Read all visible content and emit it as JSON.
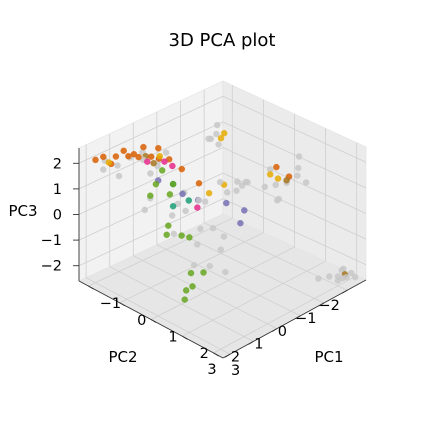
{
  "chart_data": {
    "type": "scatter",
    "dimensions": 3,
    "title": "3D PCA plot",
    "xlabel": "PC1",
    "ylabel": "PC2",
    "zlabel": "PC3",
    "xlim": [
      -1.3,
      3.3
    ],
    "ylim": [
      -2.8,
      3.3
    ],
    "zlim": [
      -2.6,
      2.6
    ],
    "xticks": [
      "-1",
      "0",
      "1",
      "2",
      "3"
    ],
    "yticks": [
      "-2",
      "-1",
      "0",
      "1",
      "2",
      "3"
    ],
    "zticks": [
      "2",
      "1",
      "0",
      "-1",
      "-2"
    ],
    "grid": true,
    "series": [
      {
        "color": "#c8c8c8",
        "points": [
          [
            2.8,
            -2.5,
            -2.3
          ],
          [
            3.0,
            -2.2,
            -2.4
          ],
          [
            2.9,
            -2.3,
            -2.2
          ],
          [
            3.1,
            -2.6,
            -2.5
          ],
          [
            2.7,
            -2.4,
            -2.6
          ],
          [
            3.0,
            -2.0,
            -2.4
          ],
          [
            2.8,
            -1.9,
            -2.3
          ],
          [
            2.6,
            -1.7,
            -2.4
          ],
          [
            3.2,
            -2.1,
            -2.2
          ],
          [
            2.9,
            -2.7,
            -2.5
          ],
          [
            1.2,
            -2.2,
            0.3
          ],
          [
            1.4,
            -2.4,
            0.6
          ],
          [
            1.0,
            -2.0,
            0.2
          ],
          [
            1.6,
            -2.5,
            0.4
          ],
          [
            0.9,
            -1.9,
            0.8
          ],
          [
            1.3,
            -2.6,
            1.2
          ],
          [
            1.1,
            -2.0,
            -0.3
          ],
          [
            0.8,
            -1.8,
            0.1
          ],
          [
            1.5,
            -2.3,
            1.0
          ],
          [
            1.2,
            -1.8,
            -0.2
          ],
          [
            0.5,
            -1.4,
            0.3
          ],
          [
            0.7,
            -1.2,
            0.5
          ],
          [
            0.3,
            -1.5,
            0.0
          ],
          [
            0.6,
            -0.9,
            0.6
          ],
          [
            0.2,
            -1.0,
            -0.1
          ],
          [
            -0.3,
            -1.2,
            1.8
          ],
          [
            -0.5,
            -1.5,
            1.9
          ],
          [
            -0.4,
            -1.1,
            1.6
          ],
          [
            -0.1,
            -0.6,
            2.0
          ],
          [
            0.0,
            -0.9,
            1.7
          ],
          [
            -0.6,
            1.5,
            1.8
          ],
          [
            -0.7,
            1.4,
            2.0
          ],
          [
            -0.8,
            1.8,
            1.9
          ],
          [
            -0.9,
            2.2,
            1.7
          ],
          [
            -0.5,
            1.0,
            1.6
          ],
          [
            -0.4,
            0.8,
            1.9
          ],
          [
            -0.3,
            1.6,
            1.5
          ],
          [
            -0.6,
            0.9,
            1.3
          ],
          [
            0.1,
            0.7,
            0.6
          ],
          [
            0.2,
            1.1,
            0.4
          ],
          [
            0.4,
            0.2,
            0.2
          ],
          [
            0.5,
            0.6,
            0.5
          ],
          [
            0.3,
            0.9,
            0.1
          ],
          [
            0.8,
            0.4,
            -0.5
          ],
          [
            1.0,
            0.2,
            -0.8
          ],
          [
            1.2,
            0.6,
            -1.0
          ],
          [
            0.7,
            0.8,
            -0.4
          ],
          [
            0.9,
            1.2,
            -0.7
          ],
          [
            0.4,
            1.6,
            0.3
          ],
          [
            0.6,
            1.8,
            -0.2
          ],
          [
            -0.9,
            2.8,
            1.8
          ],
          [
            -1.0,
            2.6,
            2.0
          ],
          [
            -0.7,
            2.4,
            1.5
          ],
          [
            0.0,
            2.0,
            0.9
          ],
          [
            0.2,
            2.5,
            0.8
          ],
          [
            1.3,
            1.2,
            -1.3
          ],
          [
            1.5,
            0.8,
            -1.6
          ],
          [
            1.1,
            1.6,
            -1.2
          ],
          [
            0.5,
            -0.3,
            0.8
          ],
          [
            0.8,
            -0.6,
            0.5
          ]
        ]
      },
      {
        "color": "#e6ab02",
        "points": [
          [
            1.0,
            -2.1,
            0.4
          ],
          [
            0.9,
            -1.9,
            0.6
          ],
          [
            -0.2,
            -1.4,
            1.8
          ],
          [
            0.0,
            -1.0,
            1.9
          ],
          [
            0.4,
            -0.6,
            0.5
          ],
          [
            -0.8,
            2.7,
            2.1
          ],
          [
            0.6,
            0.3,
            0.7
          ],
          [
            -0.3,
            1.2,
            2.0
          ]
        ]
      },
      {
        "color": "#d95f02",
        "points": [
          [
            -0.8,
            2.4,
            2.2
          ],
          [
            -0.7,
            2.0,
            2.1
          ],
          [
            -0.6,
            1.7,
            2.0
          ],
          [
            -0.9,
            2.8,
            2.3
          ],
          [
            -0.5,
            1.3,
            1.9
          ],
          [
            -0.4,
            1.1,
            1.8
          ],
          [
            -0.7,
            2.2,
            2.4
          ],
          [
            -0.6,
            1.5,
            2.3
          ],
          [
            -1.0,
            3.0,
            2.2
          ],
          [
            -0.3,
            0.8,
            1.7
          ],
          [
            -0.2,
            0.4,
            1.2
          ],
          [
            -0.5,
            1.0,
            2.1
          ],
          [
            -0.8,
            2.6,
            2.0
          ],
          [
            -0.6,
            1.9,
            2.2
          ],
          [
            1.1,
            -1.9,
            1.0
          ],
          [
            1.2,
            -2.3,
            0.5
          ],
          [
            0.2,
            0.2,
            0.8
          ]
        ]
      },
      {
        "color": "#7570b3",
        "points": [
          [
            0.9,
            -0.8,
            -0.3
          ],
          [
            1.0,
            -0.5,
            -0.6
          ],
          [
            0.7,
            -0.3,
            0.1
          ],
          [
            0.4,
            0.5,
            0.4
          ],
          [
            0.2,
            0.9,
            0.7
          ],
          [
            -0.2,
            1.4,
            1.2
          ]
        ]
      },
      {
        "color": "#e7298a",
        "points": [
          [
            -0.3,
            1.0,
            1.7
          ],
          [
            -0.2,
            0.8,
            1.5
          ],
          [
            0.3,
            0.4,
            0.0
          ],
          [
            -0.4,
            1.6,
            1.9
          ]
        ]
      },
      {
        "color": "#1b9e77",
        "points": [
          [
            0.1,
            0.5,
            0.2
          ],
          [
            -0.1,
            0.9,
            0.9
          ],
          [
            0.2,
            1.3,
            0.4
          ]
        ]
      },
      {
        "color": "#66a61e",
        "points": [
          [
            -0.3,
            1.1,
            1.4
          ],
          [
            -0.1,
            0.9,
            0.9
          ],
          [
            0.1,
            1.3,
            0.8
          ],
          [
            0.5,
            1.9,
            0.1
          ],
          [
            0.6,
            2.1,
            -0.1
          ],
          [
            0.7,
            1.6,
            -0.3
          ],
          [
            1.3,
            2.0,
            -1.2
          ],
          [
            1.5,
            2.2,
            -1.5
          ],
          [
            1.6,
            2.6,
            -1.4
          ],
          [
            1.4,
            1.6,
            -1.3
          ],
          [
            1.7,
            2.8,
            -1.6
          ],
          [
            -0.2,
            1.5,
            1.1
          ],
          [
            0.8,
            1.4,
            -0.4
          ],
          [
            0.0,
            2.0,
            1.0
          ]
        ]
      },
      {
        "color": "#a6761d",
        "points": [
          [
            -0.6,
            1.4,
            1.9
          ],
          [
            -0.5,
            1.2,
            1.6
          ],
          [
            1.2,
            -2.2,
            0.4
          ],
          [
            3.0,
            -2.3,
            -2.3
          ]
        ]
      }
    ]
  }
}
